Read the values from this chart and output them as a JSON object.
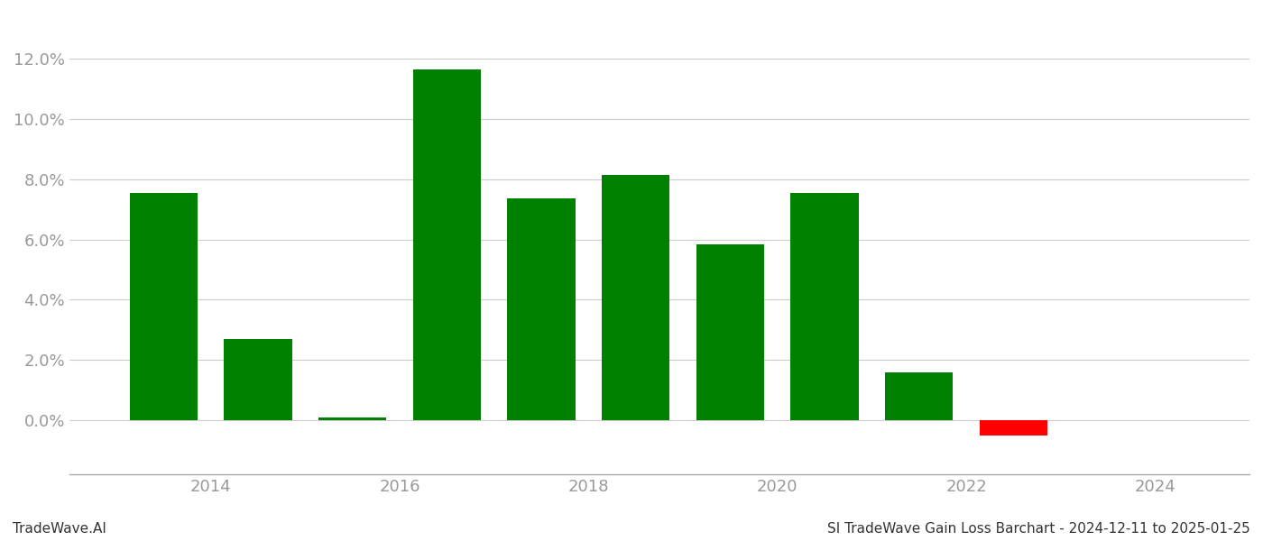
{
  "bar_positions": [
    2013.5,
    2014.5,
    2015.5,
    2016.5,
    2017.5,
    2018.5,
    2019.5,
    2020.5,
    2021.5,
    2022.5
  ],
  "bar_values": [
    0.0755,
    0.027,
    0.001,
    0.1165,
    0.0735,
    0.0815,
    0.0585,
    0.0755,
    0.016,
    -0.005
  ],
  "bar_colors": [
    "#008000",
    "#008000",
    "#008000",
    "#008000",
    "#008000",
    "#008000",
    "#008000",
    "#008000",
    "#008000",
    "#ff0000"
  ],
  "xlim": [
    2012.5,
    2025.0
  ],
  "ylim": [
    -0.018,
    0.135
  ],
  "yticks": [
    0.0,
    0.02,
    0.04,
    0.06,
    0.08,
    0.1,
    0.12
  ],
  "xticks": [
    2014,
    2016,
    2018,
    2020,
    2022,
    2024
  ],
  "grid_color": "#cccccc",
  "background_color": "#ffffff",
  "bar_width": 0.72,
  "footer_left": "TradeWave.AI",
  "footer_right": "SI TradeWave Gain Loss Barchart - 2024-12-11 to 2025-01-25",
  "tick_label_color": "#999999",
  "tick_label_fontsize": 13
}
